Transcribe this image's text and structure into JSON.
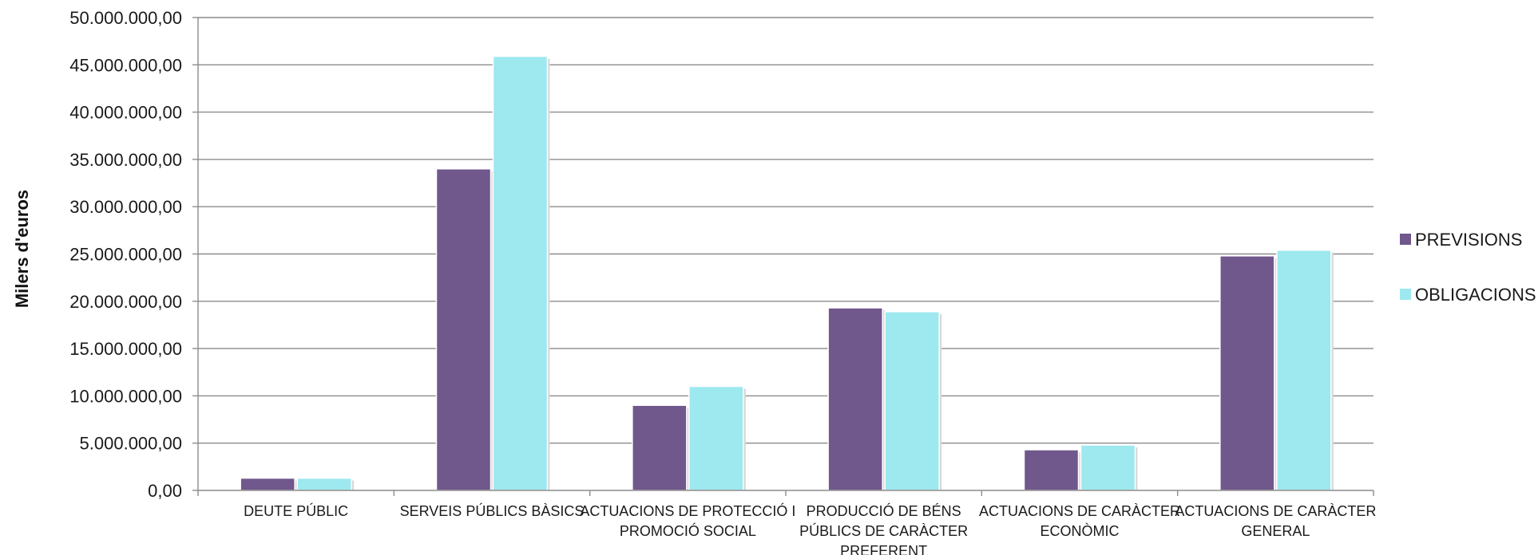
{
  "chart_data": {
    "type": "bar",
    "title": "",
    "xlabel": "",
    "ylabel": "Milers d'euros",
    "ylim": [
      0,
      50000000
    ],
    "ytick_step": 5000000,
    "yticks": [
      "0,00",
      "5.000.000,00",
      "10.000.000,00",
      "15.000.000,00",
      "20.000.000,00",
      "25.000.000,00",
      "30.000.000,00",
      "35.000.000,00",
      "40.000.000,00",
      "45.000.000,00",
      "50.000.000,00"
    ],
    "grid": true,
    "legend_position": "right",
    "categories": [
      [
        "DEUTE PÚBLIC"
      ],
      [
        "SERVEIS PÚBLICS BÀSICS"
      ],
      [
        "ACTUACIONS DE PROTECCIÓ I",
        "PROMOCIÓ SOCIAL"
      ],
      [
        "PRODUCCIÓ DE BÉNS",
        "PÚBLICS DE CARÀCTER",
        "PREFERENT"
      ],
      [
        "ACTUACIONS DE CARÀCTER",
        "ECONÒMIC"
      ],
      [
        "ACTUACIONS DE CARÀCTER",
        "GENERAL"
      ]
    ],
    "series": [
      {
        "name": "PREVISIONS",
        "color": "#70578c",
        "values": [
          1300000,
          34000000,
          9000000,
          19300000,
          4300000,
          24800000
        ]
      },
      {
        "name": "OBLIGACIONS",
        "color": "#9ee8ef",
        "values": [
          1300000,
          45900000,
          11000000,
          18900000,
          4800000,
          25400000
        ]
      }
    ]
  }
}
